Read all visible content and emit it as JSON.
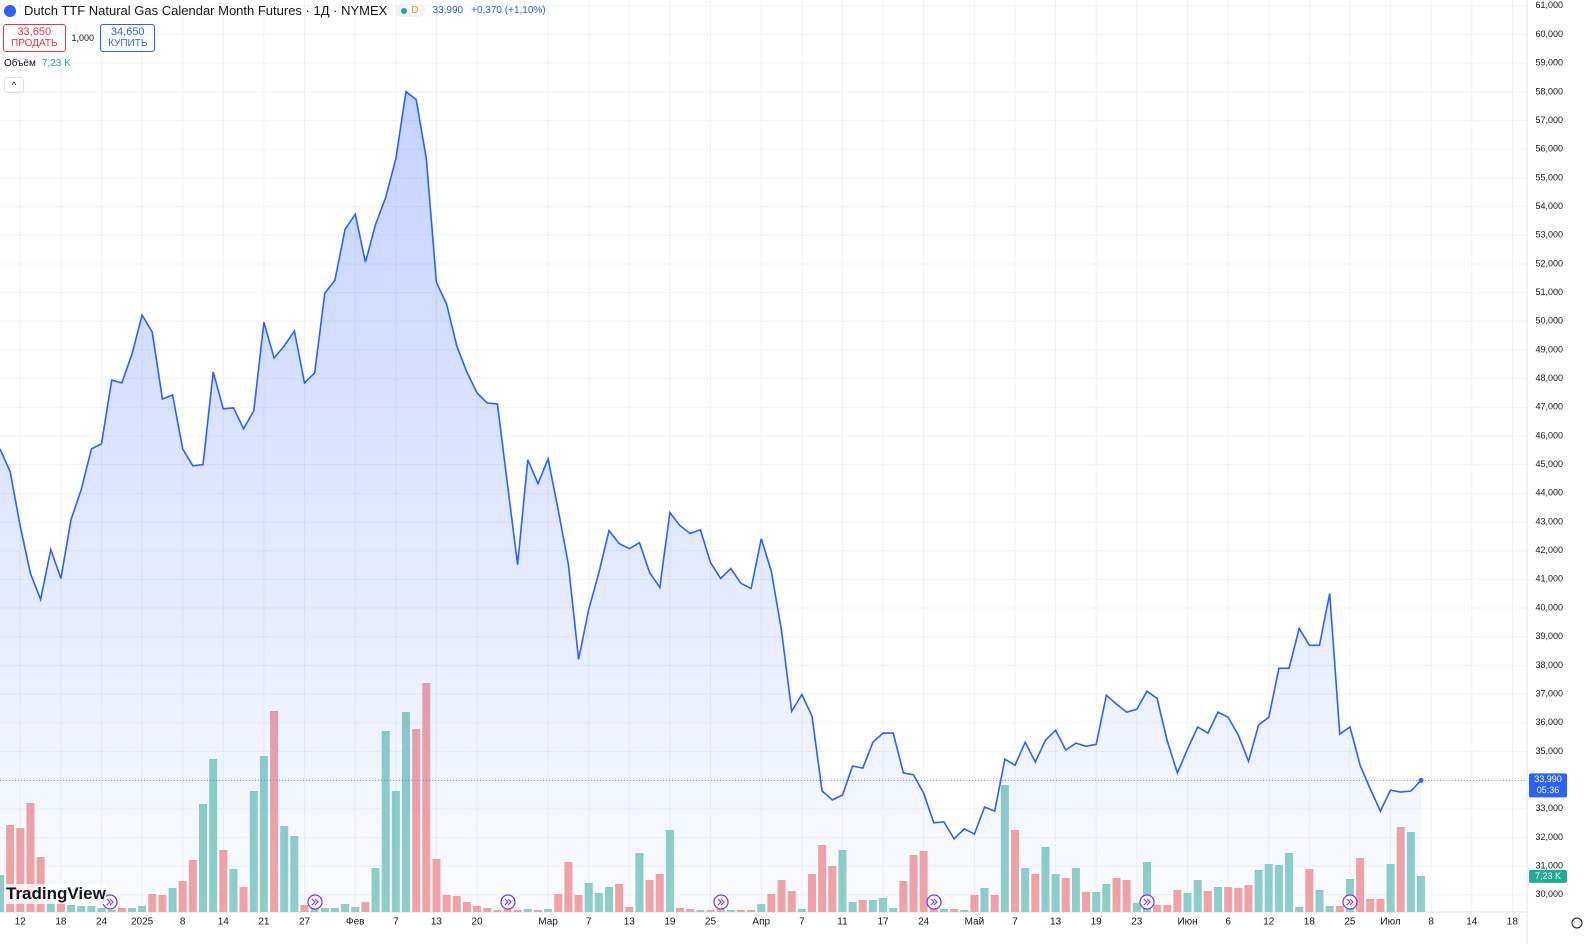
{
  "chart_data": {
    "type": "line",
    "title": "Dutch TTF Natural Gas Calendar Month Futures · 1Д · NYMEX",
    "badge": "D",
    "quote": "33,990",
    "change": "+0,370 (+1,10%)",
    "trade": {
      "sell_price": "33,650",
      "sell_label": "ПРОДАТЬ",
      "quantity": "1,000",
      "buy_price": "34,650",
      "buy_label": "КУПИТЬ"
    },
    "volume_legend": {
      "name": "Объём",
      "value": "7,23 K"
    },
    "logo": "TradingView",
    "last_price": {
      "label": "33,990",
      "countdown": "05:36"
    },
    "color": "#2962ff",
    "grid": true,
    "categories": [
      null,
      null,
      "12",
      null,
      null,
      null,
      "18",
      null,
      null,
      null,
      "24",
      null,
      null,
      null,
      "2025",
      null,
      null,
      null,
      "8",
      null,
      null,
      null,
      "14",
      null,
      null,
      null,
      "21",
      null,
      null,
      null,
      "27",
      null,
      null,
      null,
      null,
      "Фев",
      null,
      null,
      null,
      "7",
      null,
      null,
      null,
      "13",
      null,
      null,
      null,
      "20",
      null,
      null,
      null,
      null,
      null,
      null,
      "Мар",
      null,
      null,
      null,
      "7",
      null,
      null,
      null,
      "13",
      null,
      null,
      null,
      "19",
      null,
      null,
      null,
      "25",
      null,
      null,
      null,
      null,
      "Апр",
      null,
      null,
      null,
      "7",
      null,
      null,
      null,
      "11",
      null,
      null,
      null,
      "17",
      null,
      null,
      null,
      "24",
      null,
      null,
      null,
      null,
      "Май",
      null,
      null,
      null,
      "7",
      null,
      null,
      null,
      "13",
      null,
      null,
      null,
      "19",
      null,
      null,
      null,
      "23",
      null,
      null,
      null,
      null,
      "Июн",
      null,
      null,
      null,
      "6",
      null,
      null,
      null,
      "12",
      null,
      null,
      null,
      "18",
      null,
      null,
      null,
      "25",
      null,
      null,
      null,
      "Июл",
      null,
      null,
      null,
      "8",
      null,
      null,
      null,
      "14",
      null,
      null,
      null,
      "18"
    ],
    "values": [
      45550,
      44750,
      42840,
      41200,
      40300,
      42040,
      41030,
      43080,
      44130,
      45550,
      45730,
      47950,
      47850,
      48860,
      50220,
      49620,
      47290,
      47430,
      45550,
      44960,
      45000,
      48230,
      46950,
      46980,
      46250,
      46880,
      49970,
      48720,
      49140,
      49660,
      47850,
      48200,
      50980,
      51430,
      53210,
      53730,
      52060,
      53380,
      54320,
      55680,
      58010,
      57730,
      55680,
      51360,
      50600,
      49140,
      48230,
      47500,
      47150,
      47120,
      44300,
      41520,
      45170,
      44340,
      45200,
      43400,
      41520,
      38210,
      39950,
      41240,
      42700,
      42250,
      42070,
      42280,
      41240,
      40720,
      43330,
      42870,
      42600,
      42730,
      41590,
      41030,
      41380,
      40860,
      40680,
      42420,
      41270,
      39190,
      36400,
      36990,
      36230,
      33620,
      33310,
      33480,
      34490,
      34420,
      35320,
      35640,
      35640,
      34250,
      34180,
      33550,
      32510,
      32540,
      31950,
      32300,
      32120,
      33060,
      32920,
      34730,
      34520,
      35320,
      34630,
      35390,
      35740,
      35050,
      35290,
      35180,
      35250,
      36960,
      36650,
      36370,
      36470,
      37100,
      36850,
      35360,
      34250,
      35080,
      35850,
      35640,
      36370,
      36190,
      35570,
      34660,
      35920,
      36190,
      37900,
      37900,
      39290,
      38700,
      38700,
      40510,
      35600,
      35850,
      34520,
      33690,
      32920,
      33650,
      33580,
      33620,
      33990,
      null,
      null,
      null,
      null,
      null,
      null,
      null,
      null,
      null
    ],
    "volume": {
      "up_color": "#8fd0c8",
      "down_color": "#f4a4a4",
      "label_color": "#22ab94",
      "values": [
        7.4,
        17.4,
        16.8,
        21.8,
        11,
        2.4,
        1.8,
        1.4,
        1.2,
        1.2,
        0.8,
        0.4,
        0.8,
        0.8,
        1.2,
        3.6,
        3.4,
        4.8,
        6.2,
        10.4,
        21.6,
        30.6,
        12.4,
        8.6,
        5,
        24.2,
        31.2,
        40.2,
        17.2,
        15.2,
        1.4,
        1,
        0.8,
        0.8,
        1.6,
        1,
        2,
        8.8,
        36.2,
        24.2,
        40,
        36.6,
        45.8,
        10.6,
        3.4,
        3.2,
        2,
        1.2,
        0.8,
        0.4,
        0.6,
        0.4,
        0.6,
        0.4,
        0.6,
        3.6,
        10,
        3.4,
        5.8,
        3.8,
        5,
        5.6,
        1,
        11.8,
        6.4,
        7.6,
        16.4,
        0.8,
        0.6,
        0.4,
        0.4,
        0.6,
        0.4,
        0.4,
        0.4,
        1.6,
        3.6,
        6.4,
        4.2,
        0.6,
        7.6,
        13.4,
        9.2,
        12.4,
        2,
        2.4,
        2.4,
        2.8,
        0.8,
        6.2,
        11.4,
        12.2,
        3.2,
        0.6,
        0.6,
        0.4,
        3.4,
        4.8,
        3.4,
        25.4,
        16.4,
        8.8,
        7.6,
        13,
        7.6,
        6.8,
        8.8,
        4,
        4,
        5.6,
        6.8,
        6.4,
        1.8,
        10,
        1.4,
        1.4,
        4.4,
        3.8,
        6.4,
        4.2,
        5,
        5,
        4.8,
        5.4,
        8.4,
        9.6,
        9.4,
        11.8,
        1,
        8.6,
        4.4,
        1.2,
        1.2,
        6.6,
        10.8,
        2.6,
        2.6,
        9.6,
        17,
        16,
        7.23,
        null,
        null,
        null,
        null,
        null,
        null,
        null,
        null,
        null
      ],
      "value_labels": {
        "140": "7,23 K"
      }
    },
    "ylim": [
      29400,
      61100
    ],
    "yticks": [
      {
        "value": 30000,
        "label": "30,000"
      },
      {
        "value": 31000,
        "label": "31,000"
      },
      {
        "value": 32000,
        "label": "32,000"
      },
      {
        "value": 33000,
        "label": "33,000"
      },
      {
        "value": 34000,
        "label": "34,000"
      },
      {
        "value": 35000,
        "label": "35,000"
      },
      {
        "value": 36000,
        "label": "36,000"
      },
      {
        "value": 37000,
        "label": "37,000"
      },
      {
        "value": 38000,
        "label": "38,000"
      },
      {
        "value": 39000,
        "label": "39,000"
      },
      {
        "value": 40000,
        "label": "40,000"
      },
      {
        "value": 41000,
        "label": "41,000"
      },
      {
        "value": 42000,
        "label": "42,000"
      },
      {
        "value": 43000,
        "label": "43,000"
      },
      {
        "value": 44000,
        "label": "44,000"
      },
      {
        "value": 45000,
        "label": "45,000"
      },
      {
        "value": 46000,
        "label": "46,000"
      },
      {
        "value": 47000,
        "label": "47,000"
      },
      {
        "value": 48000,
        "label": "48,000"
      },
      {
        "value": 49000,
        "label": "49,000"
      },
      {
        "value": 50000,
        "label": "50,000"
      },
      {
        "value": 51000,
        "label": "51,000"
      },
      {
        "value": 52000,
        "label": "52,000"
      },
      {
        "value": 53000,
        "label": "53,000"
      },
      {
        "value": 54000,
        "label": "54,000"
      },
      {
        "value": 55000,
        "label": "55,000"
      },
      {
        "value": 56000,
        "label": "56,000"
      },
      {
        "value": 57000,
        "label": "57,000"
      },
      {
        "value": 58000,
        "label": "58,000"
      },
      {
        "value": 59000,
        "label": "59,000"
      },
      {
        "value": 60000,
        "label": "60,000"
      },
      {
        "value": 61000,
        "label": "61,000"
      }
    ]
  }
}
